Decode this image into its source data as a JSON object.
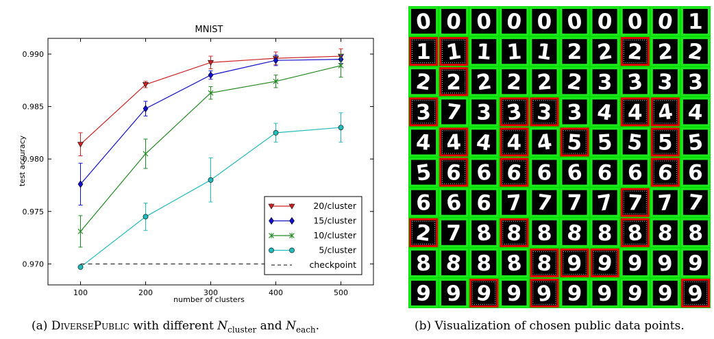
{
  "chart_data": {
    "type": "line",
    "title": "MNIST",
    "xlabel": "number of clusters",
    "ylabel": "test accuracy",
    "x": [
      100,
      200,
      300,
      400,
      500
    ],
    "xlim": [
      50,
      550
    ],
    "ylim": [
      0.968,
      0.9915
    ],
    "xticks": [
      "100",
      "200",
      "300",
      "400",
      "500"
    ],
    "yticks": [
      "0.970",
      "0.975",
      "0.980",
      "0.985",
      "0.990"
    ],
    "grid": false,
    "legend_position": "lower-right",
    "series": [
      {
        "name": "20/cluster",
        "color": "#cc2222",
        "marker": "triangle-down",
        "values": [
          0.9814,
          0.9871,
          0.9892,
          0.9896,
          0.9898
        ],
        "errors": [
          0.0011,
          0.0003,
          0.0006,
          0.0006,
          0.0007
        ]
      },
      {
        "name": "15/cluster",
        "color": "#1111cc",
        "marker": "diamond",
        "values": [
          0.9776,
          0.9848,
          0.988,
          0.9894,
          0.9895
        ],
        "errors": [
          0.002,
          0.0007,
          0.0004,
          0.0005,
          0.0004
        ]
      },
      {
        "name": "10/cluster",
        "color": "#228822",
        "marker": "x",
        "values": [
          0.9731,
          0.9805,
          0.9863,
          0.9874,
          0.9889
        ],
        "errors": [
          0.0015,
          0.0014,
          0.0006,
          0.0006,
          0.0011
        ]
      },
      {
        "name": "5/cluster",
        "color": "#22bbbb",
        "marker": "circle",
        "values": [
          0.9697,
          0.9745,
          0.978,
          0.9825,
          0.983
        ],
        "errors": [
          0.0,
          0.0013,
          0.0021,
          0.0009,
          0.0014
        ]
      },
      {
        "name": "checkpoint",
        "color": "#000000",
        "marker": "dashed",
        "values": [
          0.97,
          0.97,
          0.97,
          0.97,
          0.97
        ]
      }
    ]
  },
  "visualization": {
    "rows": [
      [
        "0",
        "0",
        "0",
        "0",
        "0",
        "0",
        "0",
        "0",
        "0",
        "1"
      ],
      [
        "1",
        "1",
        "1",
        "1",
        "1",
        "2",
        "2",
        "2",
        "2",
        "2"
      ],
      [
        "2",
        "2",
        "2",
        "2",
        "2",
        "2",
        "3",
        "3",
        "3",
        "3"
      ],
      [
        "3",
        "7",
        "3",
        "3",
        "3",
        "3",
        "4",
        "4",
        "4",
        "4"
      ],
      [
        "4",
        "4",
        "4",
        "4",
        "4",
        "5",
        "5",
        "5",
        "5",
        "5"
      ],
      [
        "5",
        "6",
        "6",
        "6",
        "6",
        "6",
        "6",
        "6",
        "6",
        "6"
      ],
      [
        "6",
        "6",
        "6",
        "7",
        "7",
        "7",
        "7",
        "7",
        "7",
        "7"
      ],
      [
        "2",
        "7",
        "8",
        "8",
        "8",
        "8",
        "8",
        "8",
        "8",
        "8"
      ],
      [
        "8",
        "8",
        "8",
        "8",
        "8",
        "9",
        "9",
        "9",
        "9",
        "9"
      ],
      [
        "9",
        "9",
        "9",
        "9",
        "9",
        "9",
        "9",
        "9",
        "9",
        "9"
      ]
    ],
    "borders": [
      [
        "g",
        "g",
        "g",
        "g",
        "g",
        "g",
        "g",
        "g",
        "g",
        "g"
      ],
      [
        "r",
        "r",
        "g",
        "g",
        "g",
        "g",
        "g",
        "r",
        "g",
        "g"
      ],
      [
        "g",
        "r",
        "g",
        "g",
        "g",
        "g",
        "g",
        "g",
        "g",
        "g"
      ],
      [
        "r",
        "g",
        "g",
        "r",
        "r",
        "g",
        "g",
        "r",
        "r",
        "g"
      ],
      [
        "g",
        "r",
        "g",
        "r",
        "g",
        "r",
        "g",
        "g",
        "r",
        "g"
      ],
      [
        "g",
        "r",
        "g",
        "r",
        "g",
        "g",
        "g",
        "g",
        "r",
        "g"
      ],
      [
        "g",
        "g",
        "g",
        "g",
        "g",
        "g",
        "g",
        "r",
        "g",
        "g"
      ],
      [
        "r",
        "g",
        "g",
        "r",
        "g",
        "g",
        "g",
        "r",
        "g",
        "g"
      ],
      [
        "g",
        "g",
        "g",
        "g",
        "r",
        "r",
        "r",
        "g",
        "g",
        "g"
      ],
      [
        "g",
        "g",
        "r",
        "g",
        "r",
        "g",
        "g",
        "g",
        "g",
        "r"
      ]
    ],
    "border_colors": {
      "g": "#1ee81e",
      "r": "#e80000"
    },
    "background": "#00e000"
  },
  "captions": {
    "a_prefix": "(a) ",
    "a_method": "DiversePublic",
    "a_mid": " with different ",
    "a_n1": "N",
    "a_n1_sub": "cluster",
    "a_and": " and ",
    "a_n2": "N",
    "a_n2_sub": "each",
    "a_end": ".",
    "b": "(b) Visualization of chosen public data points."
  }
}
